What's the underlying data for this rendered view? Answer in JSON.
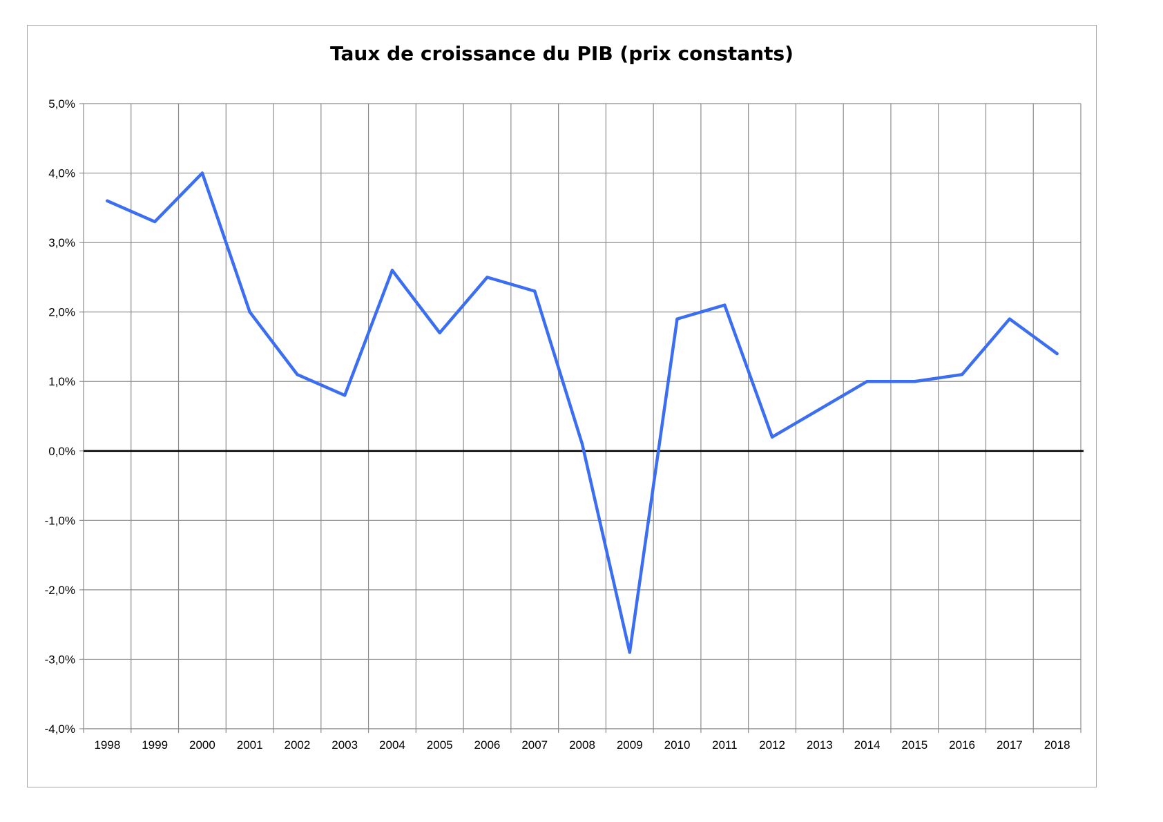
{
  "chart_data": {
    "type": "line",
    "title": "Taux de croissance du PIB (prix constants)",
    "xlabel": "",
    "ylabel": "",
    "categories": [
      "1998",
      "1999",
      "2000",
      "2001",
      "2002",
      "2003",
      "2004",
      "2005",
      "2006",
      "2007",
      "2008",
      "2009",
      "2010",
      "2011",
      "2012",
      "2013",
      "2014",
      "2015",
      "2016",
      "2017",
      "2018"
    ],
    "series": [
      {
        "values": [
          3.6,
          3.3,
          4.0,
          2.0,
          1.1,
          0.8,
          2.6,
          1.7,
          2.5,
          2.3,
          0.1,
          -2.9,
          1.9,
          2.1,
          0.2,
          0.6,
          1.0,
          1.0,
          1.1,
          1.9,
          1.4
        ]
      }
    ],
    "ylim": [
      -4,
      5
    ],
    "yticks": [
      5,
      4,
      3,
      2,
      1,
      0,
      -1,
      -2,
      -3,
      -4
    ],
    "ytick_labels": [
      "5,0%",
      "4,0%",
      "3,0%",
      "2,0%",
      "1,0%",
      "0,0%",
      "-1,0%",
      "-2,0%",
      "-3,0%",
      "-4,0%"
    ],
    "grid": true,
    "legend": "none",
    "colors": {
      "line": "#3b6ef0",
      "grid": "#8c8c8c",
      "zero_line": "#000000",
      "frame": "#a6a6a6"
    }
  }
}
